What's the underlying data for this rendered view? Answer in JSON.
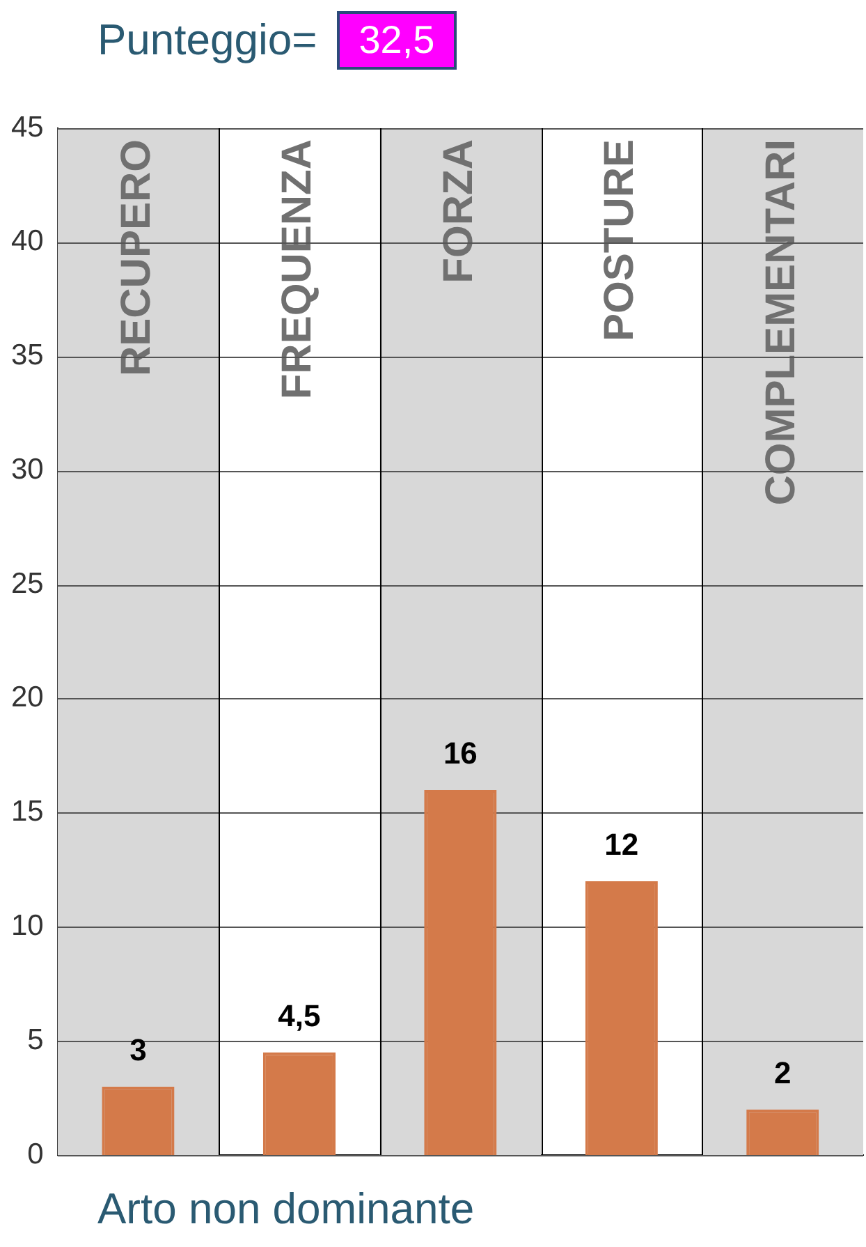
{
  "chart_data": {
    "type": "bar",
    "title": "Punteggio=",
    "xlabel": "Arto non dominante",
    "annotations": [
      "32,5"
    ],
    "categories": [
      "RECUPERO",
      "FREQUENZA",
      "FORZA",
      "POSTURE",
      "COMPLEMENTARI"
    ],
    "values": [
      3,
      4.5,
      16,
      12,
      2
    ],
    "value_labels": [
      "3",
      "4,5",
      "16",
      "12",
      "2"
    ],
    "color": "#d47a4a",
    "ylim": [
      0,
      45
    ],
    "yticks": [
      0,
      5,
      10,
      15,
      20,
      25,
      30,
      35,
      40,
      45
    ],
    "grid": true,
    "legend": false,
    "bands": [
      {
        "axis": "x",
        "from": "RECUPERO",
        "to": "RECUPERO",
        "color": "#d8d8d8"
      },
      {
        "axis": "x",
        "from": "FORZA",
        "to": "FORZA",
        "color": "#d8d8d8"
      },
      {
        "axis": "x",
        "from": "COMPLEMENTARI",
        "to": "COMPLEMENTARI",
        "color": "#d8d8d8"
      }
    ]
  }
}
